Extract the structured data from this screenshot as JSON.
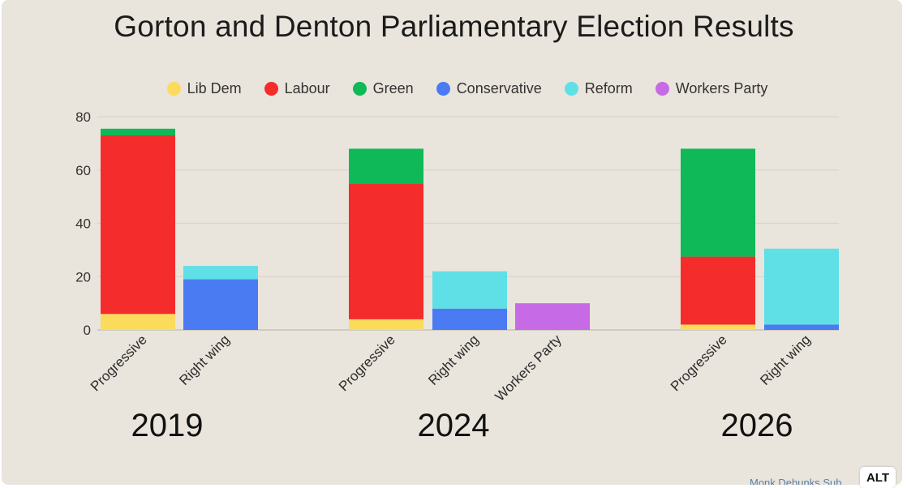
{
  "chart_data": {
    "type": "bar",
    "stacked": true,
    "title": "Gorton and Denton Parliamentary Election Results",
    "ylim": [
      0,
      80
    ],
    "yticks": [
      0,
      20,
      40,
      60,
      80
    ],
    "grid": true,
    "legend_position": "top",
    "series": [
      {
        "name": "Lib Dem",
        "color": "#fbdb5c"
      },
      {
        "name": "Labour",
        "color": "#f42c2c"
      },
      {
        "name": "Green",
        "color": "#0fb958"
      },
      {
        "name": "Conservative",
        "color": "#4a7bf3"
      },
      {
        "name": "Reform",
        "color": "#5fe0e6"
      },
      {
        "name": "Workers Party",
        "color": "#c76ae6"
      }
    ],
    "groups": [
      {
        "label": "2019",
        "bars": [
          {
            "category": "Progressive",
            "segments": [
              {
                "series": "Lib Dem",
                "value": 6
              },
              {
                "series": "Labour",
                "value": 67
              },
              {
                "series": "Green",
                "value": 2.5
              }
            ]
          },
          {
            "category": "Right wing",
            "segments": [
              {
                "series": "Conservative",
                "value": 19
              },
              {
                "series": "Reform",
                "value": 5
              }
            ]
          }
        ]
      },
      {
        "label": "2024",
        "bars": [
          {
            "category": "Progressive",
            "segments": [
              {
                "series": "Lib Dem",
                "value": 4
              },
              {
                "series": "Labour",
                "value": 51
              },
              {
                "series": "Green",
                "value": 13
              }
            ]
          },
          {
            "category": "Right wing",
            "segments": [
              {
                "series": "Conservative",
                "value": 8
              },
              {
                "series": "Reform",
                "value": 14
              }
            ]
          },
          {
            "category": "Workers Party",
            "segments": [
              {
                "series": "Workers Party",
                "value": 10
              }
            ]
          }
        ]
      },
      {
        "label": "2026",
        "bars": [
          {
            "category": "Progressive",
            "segments": [
              {
                "series": "Lib Dem",
                "value": 2
              },
              {
                "series": "Labour",
                "value": 25.5
              },
              {
                "series": "Green",
                "value": 40.5
              }
            ]
          },
          {
            "category": "Right wing",
            "segments": [
              {
                "series": "Conservative",
                "value": 2
              },
              {
                "series": "Reform",
                "value": 28.5
              }
            ]
          }
        ]
      }
    ]
  },
  "credit": "Monk Debunks Sub",
  "alt_badge": "ALT"
}
